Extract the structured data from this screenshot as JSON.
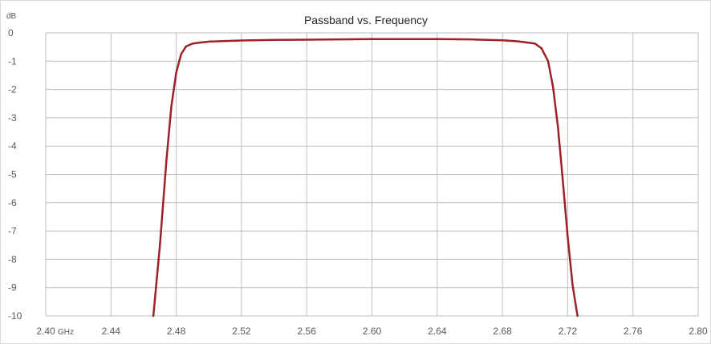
{
  "chart_data": {
    "type": "line",
    "title": "Passband vs. Frequency",
    "xunit": "GHz",
    "yunit": "dB",
    "xlim": [
      2.4,
      2.8
    ],
    "ylim": [
      -10,
      0
    ],
    "x_ticks": [
      "2.40",
      "2.44",
      "2.48",
      "2.52",
      "2.56",
      "2.60",
      "2.64",
      "2.68",
      "2.72",
      "2.76",
      "2.80"
    ],
    "y_ticks": [
      "0",
      "-1",
      "-2",
      "-3",
      "-4",
      "-5",
      "-6",
      "-7",
      "-8",
      "-9",
      "-10"
    ],
    "grid": true,
    "series": [
      {
        "color": "#9b2226",
        "x": [
          2.466,
          2.47,
          2.474,
          2.477,
          2.48,
          2.483,
          2.486,
          2.49,
          2.495,
          2.5,
          2.52,
          2.54,
          2.56,
          2.58,
          2.6,
          2.62,
          2.64,
          2.66,
          2.68,
          2.69,
          2.7,
          2.704,
          2.708,
          2.711,
          2.714,
          2.717,
          2.72,
          2.723,
          2.726
        ],
        "y": [
          -10.0,
          -7.5,
          -4.5,
          -2.6,
          -1.4,
          -0.75,
          -0.48,
          -0.38,
          -0.34,
          -0.31,
          -0.27,
          -0.25,
          -0.24,
          -0.23,
          -0.22,
          -0.22,
          -0.22,
          -0.23,
          -0.26,
          -0.3,
          -0.38,
          -0.55,
          -1.0,
          -1.9,
          -3.3,
          -5.2,
          -7.2,
          -8.9,
          -10.0
        ]
      }
    ]
  }
}
